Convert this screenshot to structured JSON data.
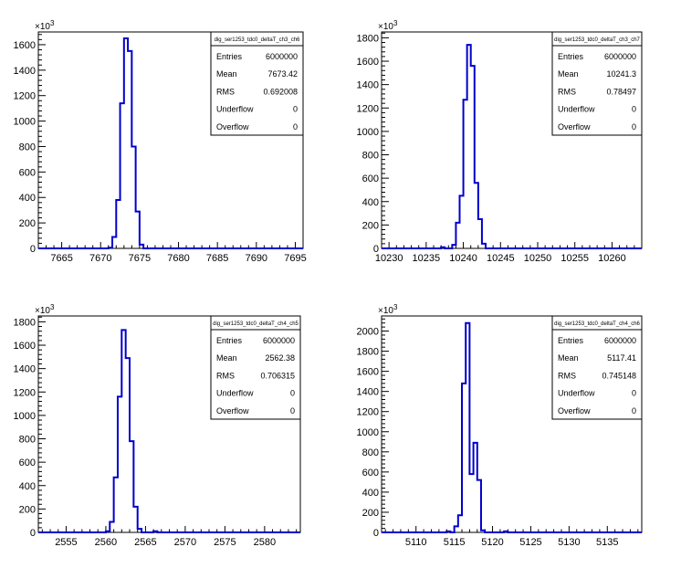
{
  "figure": {
    "background": "#ffffff",
    "line_color": "#0000cc",
    "axis_color": "#000000"
  },
  "chart_data": [
    {
      "type": "line",
      "chart_kind": "histogram",
      "title": "",
      "xlabel": "",
      "ylabel": "",
      "y_exponent_label": "10^3",
      "y_multiplier": 1000,
      "xlim": [
        7662,
        7696
      ],
      "ylim": [
        0,
        1700
      ],
      "xticks": [
        7665,
        7670,
        7675,
        7680,
        7685,
        7690,
        7695
      ],
      "yticks": [
        0,
        200,
        400,
        600,
        800,
        1000,
        1200,
        1400,
        1600
      ],
      "bin_width": 0.5,
      "series": [
        {
          "bins": [
            [
              7671.0,
              5
            ],
            [
              7671.5,
              90
            ],
            [
              7672.0,
              380
            ],
            [
              7672.5,
              1140
            ],
            [
              7673.0,
              1650
            ],
            [
              7673.5,
              1550
            ],
            [
              7674.0,
              800
            ],
            [
              7674.5,
              290
            ],
            [
              7675.0,
              30
            ]
          ]
        }
      ],
      "stats": {
        "name": "dig_ser1253_tdc0_deltaT_ch3_ch6",
        "rows": [
          {
            "label": "Entries",
            "value": "6000000"
          },
          {
            "label": "Mean",
            "value": "7673.42"
          },
          {
            "label": "RMS",
            "value": "0.692008"
          },
          {
            "label": "Underflow",
            "value": "0"
          },
          {
            "label": "Overflow",
            "value": "0"
          }
        ]
      }
    },
    {
      "type": "line",
      "chart_kind": "histogram",
      "title": "",
      "xlabel": "",
      "ylabel": "",
      "y_exponent_label": "10^3",
      "y_multiplier": 1000,
      "xlim": [
        10229,
        10264
      ],
      "ylim": [
        0,
        1850
      ],
      "xticks": [
        10230,
        10235,
        10240,
        10245,
        10250,
        10255,
        10260
      ],
      "yticks": [
        0,
        200,
        400,
        600,
        800,
        1000,
        1200,
        1400,
        1600,
        1800
      ],
      "bin_width": 0.5,
      "series": [
        {
          "bins": [
            [
              10237.0,
              10
            ],
            [
              10238.5,
              30
            ],
            [
              10239.0,
              220
            ],
            [
              10239.5,
              450
            ],
            [
              10240.0,
              1270
            ],
            [
              10240.5,
              1740
            ],
            [
              10241.0,
              1560
            ],
            [
              10241.5,
              560
            ],
            [
              10242.0,
              250
            ],
            [
              10242.5,
              40
            ]
          ]
        }
      ],
      "stats": {
        "name": "dig_ser1253_tdc0_deltaT_ch3_ch7",
        "rows": [
          {
            "label": "Entries",
            "value": "6000000"
          },
          {
            "label": "Mean",
            "value": "10241.3"
          },
          {
            "label": "RMS",
            "value": "0.78497"
          },
          {
            "label": "Underflow",
            "value": "0"
          },
          {
            "label": "Overflow",
            "value": "0"
          }
        ]
      }
    },
    {
      "type": "line",
      "chart_kind": "histogram",
      "title": "",
      "xlabel": "",
      "ylabel": "",
      "y_exponent_label": "10^3",
      "y_multiplier": 1000,
      "xlim": [
        2551.5,
        2584.5
      ],
      "ylim": [
        0,
        1850
      ],
      "xticks": [
        2555,
        2560,
        2565,
        2570,
        2575,
        2580
      ],
      "yticks": [
        0,
        200,
        400,
        600,
        800,
        1000,
        1200,
        1400,
        1600,
        1800
      ],
      "bin_width": 0.5,
      "series": [
        {
          "bins": [
            [
              2560.0,
              10
            ],
            [
              2560.5,
              90
            ],
            [
              2561.0,
              470
            ],
            [
              2561.5,
              1160
            ],
            [
              2562.0,
              1730
            ],
            [
              2562.5,
              1490
            ],
            [
              2563.0,
              780
            ],
            [
              2563.5,
              220
            ],
            [
              2564.0,
              30
            ],
            [
              2566.0,
              10
            ]
          ]
        }
      ],
      "stats": {
        "name": "dig_ser1253_tdc0_deltaT_ch4_ch5",
        "rows": [
          {
            "label": "Entries",
            "value": "6000000"
          },
          {
            "label": "Mean",
            "value": "2562.38"
          },
          {
            "label": "RMS",
            "value": "0.706315"
          },
          {
            "label": "Underflow",
            "value": "0"
          },
          {
            "label": "Overflow",
            "value": "0"
          }
        ]
      }
    },
    {
      "type": "line",
      "chart_kind": "histogram",
      "title": "",
      "xlabel": "",
      "ylabel": "",
      "y_exponent_label": "10^3",
      "y_multiplier": 1000,
      "xlim": [
        5105.5,
        5139.5
      ],
      "ylim": [
        0,
        2150
      ],
      "xticks": [
        5110,
        5115,
        5120,
        5125,
        5130,
        5135
      ],
      "yticks": [
        0,
        200,
        400,
        600,
        800,
        1000,
        1200,
        1400,
        1600,
        1800,
        2000
      ],
      "bin_width": 0.5,
      "series": [
        {
          "bins": [
            [
              5114.0,
              10
            ],
            [
              5115.0,
              60
            ],
            [
              5115.5,
              170
            ],
            [
              5116.0,
              1480
            ],
            [
              5116.5,
              2080
            ],
            [
              5117.0,
              580
            ],
            [
              5117.5,
              890
            ],
            [
              5118.0,
              520
            ],
            [
              5118.5,
              20
            ],
            [
              5121.5,
              10
            ]
          ]
        }
      ],
      "stats": {
        "name": "dig_ser1253_tdc0_deltaT_ch4_ch6",
        "rows": [
          {
            "label": "Entries",
            "value": "6000000"
          },
          {
            "label": "Mean",
            "value": "5117.41"
          },
          {
            "label": "RMS",
            "value": "0.745148"
          },
          {
            "label": "Underflow",
            "value": "0"
          },
          {
            "label": "Overflow",
            "value": "0"
          }
        ]
      }
    }
  ]
}
